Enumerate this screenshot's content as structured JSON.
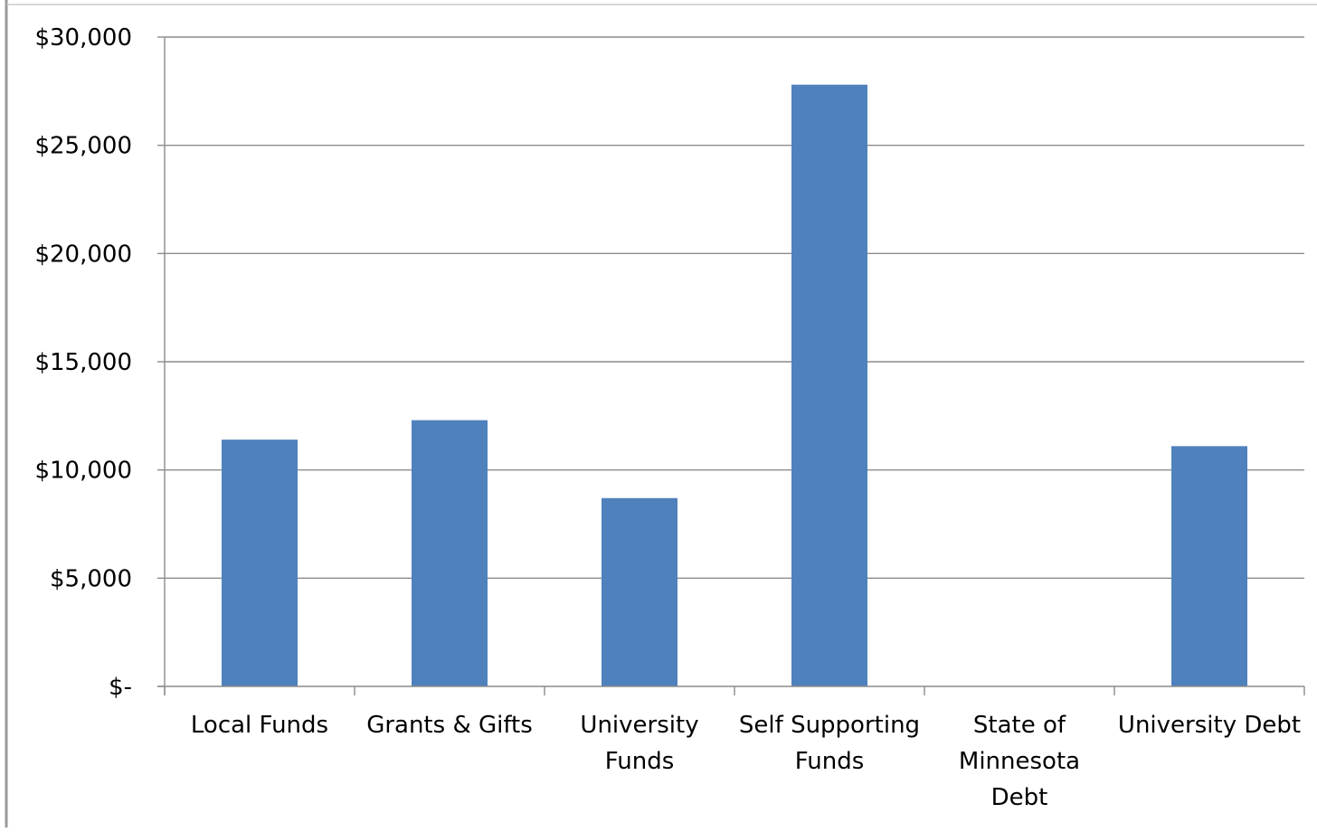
{
  "chart_data": {
    "type": "bar",
    "title": "",
    "xlabel": "",
    "ylabel": "",
    "categories": [
      "Local Funds",
      "Grants & Gifts",
      "University Funds",
      "Self Supporting Funds",
      "State of Minnesota Debt",
      "University Debt"
    ],
    "category_label_lines": [
      [
        "Local Funds"
      ],
      [
        "Grants & Gifts"
      ],
      [
        "University",
        "Funds"
      ],
      [
        "Self Supporting",
        "Funds"
      ],
      [
        "State of",
        "Minnesota",
        "Debt"
      ],
      [
        "University Debt"
      ]
    ],
    "values": [
      11400,
      12300,
      8700,
      27800,
      0,
      11100
    ],
    "ylim": [
      0,
      30000
    ],
    "y_ticks": [
      0,
      5000,
      10000,
      15000,
      20000,
      25000,
      30000
    ],
    "y_tick_labels": [
      "$-",
      "$5,000",
      "$10,000",
      "$15,000",
      "$20,000",
      "$25,000",
      "$30,000"
    ],
    "grid": true,
    "legend": "none",
    "bar_color": "#4f81bd"
  }
}
